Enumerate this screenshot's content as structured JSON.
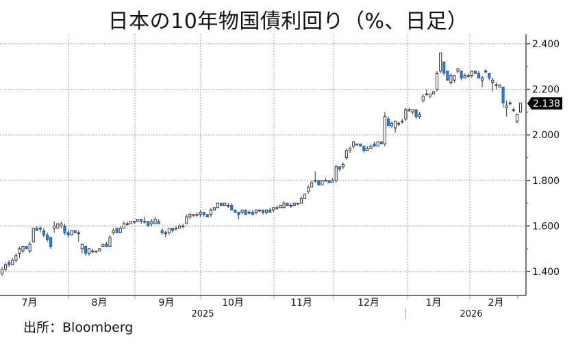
{
  "header": {
    "title": "日本の10年物国債利回り（%、日足）"
  },
  "footer": {
    "source": "出所：Bloomberg"
  },
  "colors": {
    "up_fill": "#ffffff",
    "up_stroke": "#333333",
    "down_fill": "#2e7fe0",
    "down_stroke": "#1d5fb0",
    "grid": "#9a9a9a",
    "axis": "#777777",
    "last_badge_bg": "#000000",
    "last_badge_text": "#ffffff"
  },
  "chart_data": {
    "type": "candlestick",
    "title": "日本の10年物国債利回り（%、日足）",
    "xlabel": "",
    "ylabel": "",
    "ylim": [
      1.3,
      2.42
    ],
    "y_ticks": [
      "1.400",
      "1.600",
      "1.800",
      "2.000",
      "2.200",
      "2.400"
    ],
    "y_tick_values": [
      1.4,
      1.6,
      1.8,
      2.0,
      2.2,
      2.4
    ],
    "last_value": "2.138",
    "x_month_labels": [
      "7月",
      "8月",
      "9月",
      "10月",
      "11月",
      "12月",
      "1月",
      "2月"
    ],
    "x_year_labels": [
      "2025",
      "2026"
    ],
    "grid": true,
    "legend": null,
    "candles_approx": [
      {
        "o": 1.39,
        "h": 1.42,
        "l": 1.38,
        "c": 1.41
      },
      {
        "o": 1.41,
        "h": 1.44,
        "l": 1.4,
        "c": 1.43
      },
      {
        "o": 1.44,
        "h": 1.45,
        "l": 1.42,
        "c": 1.43
      },
      {
        "o": 1.43,
        "h": 1.46,
        "l": 1.43,
        "c": 1.45
      },
      {
        "o": 1.45,
        "h": 1.48,
        "l": 1.44,
        "c": 1.47
      },
      {
        "o": 1.48,
        "h": 1.51,
        "l": 1.46,
        "c": 1.5
      },
      {
        "o": 1.49,
        "h": 1.51,
        "l": 1.48,
        "c": 1.51
      },
      {
        "o": 1.51,
        "h": 1.51,
        "l": 1.5,
        "c": 1.5
      },
      {
        "o": 1.49,
        "h": 1.53,
        "l": 1.48,
        "c": 1.52
      },
      {
        "o": 1.53,
        "h": 1.59,
        "l": 1.53,
        "c": 1.59
      },
      {
        "o": 1.59,
        "h": 1.6,
        "l": 1.58,
        "c": 1.58
      },
      {
        "o": 1.59,
        "h": 1.6,
        "l": 1.57,
        "c": 1.59
      },
      {
        "o": 1.58,
        "h": 1.59,
        "l": 1.55,
        "c": 1.56
      },
      {
        "o": 1.56,
        "h": 1.57,
        "l": 1.53,
        "c": 1.54
      },
      {
        "o": 1.55,
        "h": 1.55,
        "l": 1.5,
        "c": 1.51
      },
      {
        "o": 1.59,
        "h": 1.62,
        "l": 1.57,
        "c": 1.6
      },
      {
        "o": 1.59,
        "h": 1.61,
        "l": 1.59,
        "c": 1.61
      },
      {
        "o": 1.6,
        "h": 1.62,
        "l": 1.59,
        "c": 1.61
      },
      {
        "o": 1.6,
        "h": 1.61,
        "l": 1.56,
        "c": 1.57
      },
      {
        "o": 1.57,
        "h": 1.58,
        "l": 1.55,
        "c": 1.56
      },
      {
        "o": 1.56,
        "h": 1.58,
        "l": 1.56,
        "c": 1.58
      },
      {
        "o": 1.58,
        "h": 1.58,
        "l": 1.57,
        "c": 1.57
      },
      {
        "o": 1.57,
        "h": 1.58,
        "l": 1.53,
        "c": 1.57
      },
      {
        "o": 1.5,
        "h": 1.52,
        "l": 1.48,
        "c": 1.52
      },
      {
        "o": 1.51,
        "h": 1.51,
        "l": 1.47,
        "c": 1.48
      },
      {
        "o": 1.48,
        "h": 1.5,
        "l": 1.47,
        "c": 1.5
      },
      {
        "o": 1.49,
        "h": 1.5,
        "l": 1.48,
        "c": 1.49
      },
      {
        "o": 1.49,
        "h": 1.49,
        "l": 1.48,
        "c": 1.49
      },
      {
        "o": 1.49,
        "h": 1.5,
        "l": 1.49,
        "c": 1.5
      },
      {
        "o": 1.51,
        "h": 1.52,
        "l": 1.51,
        "c": 1.52
      },
      {
        "o": 1.52,
        "h": 1.53,
        "l": 1.51,
        "c": 1.51
      },
      {
        "o": 1.51,
        "h": 1.56,
        "l": 1.51,
        "c": 1.55
      },
      {
        "o": 1.57,
        "h": 1.59,
        "l": 1.56,
        "c": 1.58
      },
      {
        "o": 1.59,
        "h": 1.59,
        "l": 1.57,
        "c": 1.57
      },
      {
        "o": 1.57,
        "h": 1.6,
        "l": 1.57,
        "c": 1.59
      },
      {
        "o": 1.59,
        "h": 1.62,
        "l": 1.59,
        "c": 1.61
      },
      {
        "o": 1.61,
        "h": 1.62,
        "l": 1.6,
        "c": 1.61
      },
      {
        "o": 1.61,
        "h": 1.62,
        "l": 1.61,
        "c": 1.62
      },
      {
        "o": 1.62,
        "h": 1.62,
        "l": 1.61,
        "c": 1.62
      },
      {
        "o": 1.62,
        "h": 1.63,
        "l": 1.62,
        "c": 1.63
      },
      {
        "o": 1.63,
        "h": 1.63,
        "l": 1.61,
        "c": 1.62
      },
      {
        "o": 1.62,
        "h": 1.64,
        "l": 1.61,
        "c": 1.62
      },
      {
        "o": 1.62,
        "h": 1.62,
        "l": 1.6,
        "c": 1.6
      },
      {
        "o": 1.61,
        "h": 1.63,
        "l": 1.6,
        "c": 1.62
      },
      {
        "o": 1.61,
        "h": 1.64,
        "l": 1.61,
        "c": 1.63
      },
      {
        "o": 1.62,
        "h": 1.63,
        "l": 1.61,
        "c": 1.61
      },
      {
        "o": 1.58,
        "h": 1.59,
        "l": 1.56,
        "c": 1.57
      },
      {
        "o": 1.57,
        "h": 1.58,
        "l": 1.55,
        "c": 1.57
      },
      {
        "o": 1.57,
        "h": 1.59,
        "l": 1.56,
        "c": 1.59
      },
      {
        "o": 1.59,
        "h": 1.59,
        "l": 1.57,
        "c": 1.58
      },
      {
        "o": 1.59,
        "h": 1.6,
        "l": 1.58,
        "c": 1.59
      },
      {
        "o": 1.59,
        "h": 1.61,
        "l": 1.59,
        "c": 1.6
      },
      {
        "o": 1.6,
        "h": 1.61,
        "l": 1.59,
        "c": 1.6
      },
      {
        "o": 1.61,
        "h": 1.65,
        "l": 1.61,
        "c": 1.64
      },
      {
        "o": 1.64,
        "h": 1.66,
        "l": 1.63,
        "c": 1.65
      },
      {
        "o": 1.65,
        "h": 1.65,
        "l": 1.64,
        "c": 1.65
      },
      {
        "o": 1.65,
        "h": 1.66,
        "l": 1.64,
        "c": 1.65
      },
      {
        "o": 1.65,
        "h": 1.67,
        "l": 1.64,
        "c": 1.66
      },
      {
        "o": 1.66,
        "h": 1.66,
        "l": 1.64,
        "c": 1.65
      },
      {
        "o": 1.65,
        "h": 1.65,
        "l": 1.64,
        "c": 1.64
      },
      {
        "o": 1.65,
        "h": 1.68,
        "l": 1.64,
        "c": 1.67
      },
      {
        "o": 1.67,
        "h": 1.68,
        "l": 1.67,
        "c": 1.68
      },
      {
        "o": 1.68,
        "h": 1.7,
        "l": 1.68,
        "c": 1.7
      },
      {
        "o": 1.7,
        "h": 1.7,
        "l": 1.69,
        "c": 1.69
      },
      {
        "o": 1.69,
        "h": 1.7,
        "l": 1.69,
        "c": 1.7
      },
      {
        "o": 1.69,
        "h": 1.7,
        "l": 1.68,
        "c": 1.69
      },
      {
        "o": 1.69,
        "h": 1.7,
        "l": 1.67,
        "c": 1.67
      },
      {
        "o": 1.67,
        "h": 1.67,
        "l": 1.66,
        "c": 1.66
      },
      {
        "o": 1.66,
        "h": 1.66,
        "l": 1.63,
        "c": 1.65
      },
      {
        "o": 1.66,
        "h": 1.67,
        "l": 1.65,
        "c": 1.67
      },
      {
        "o": 1.67,
        "h": 1.67,
        "l": 1.65,
        "c": 1.65
      },
      {
        "o": 1.66,
        "h": 1.67,
        "l": 1.65,
        "c": 1.66
      },
      {
        "o": 1.66,
        "h": 1.67,
        "l": 1.65,
        "c": 1.65
      },
      {
        "o": 1.66,
        "h": 1.67,
        "l": 1.65,
        "c": 1.67
      },
      {
        "o": 1.67,
        "h": 1.67,
        "l": 1.66,
        "c": 1.67
      },
      {
        "o": 1.67,
        "h": 1.67,
        "l": 1.65,
        "c": 1.66
      },
      {
        "o": 1.66,
        "h": 1.67,
        "l": 1.65,
        "c": 1.67
      },
      {
        "o": 1.67,
        "h": 1.68,
        "l": 1.66,
        "c": 1.66
      },
      {
        "o": 1.67,
        "h": 1.68,
        "l": 1.66,
        "c": 1.68
      },
      {
        "o": 1.68,
        "h": 1.69,
        "l": 1.67,
        "c": 1.68
      },
      {
        "o": 1.68,
        "h": 1.69,
        "l": 1.68,
        "c": 1.69
      },
      {
        "o": 1.68,
        "h": 1.71,
        "l": 1.68,
        "c": 1.7
      },
      {
        "o": 1.7,
        "h": 1.7,
        "l": 1.69,
        "c": 1.69
      },
      {
        "o": 1.69,
        "h": 1.7,
        "l": 1.68,
        "c": 1.69
      },
      {
        "o": 1.69,
        "h": 1.7,
        "l": 1.69,
        "c": 1.7
      },
      {
        "o": 1.7,
        "h": 1.7,
        "l": 1.69,
        "c": 1.7
      },
      {
        "o": 1.7,
        "h": 1.73,
        "l": 1.7,
        "c": 1.72
      },
      {
        "o": 1.72,
        "h": 1.74,
        "l": 1.72,
        "c": 1.74
      },
      {
        "o": 1.75,
        "h": 1.78,
        "l": 1.74,
        "c": 1.77
      },
      {
        "o": 1.77,
        "h": 1.8,
        "l": 1.77,
        "c": 1.79
      },
      {
        "o": 1.8,
        "h": 1.84,
        "l": 1.79,
        "c": 1.8
      },
      {
        "o": 1.8,
        "h": 1.8,
        "l": 1.78,
        "c": 1.78
      },
      {
        "o": 1.78,
        "h": 1.8,
        "l": 1.78,
        "c": 1.8
      },
      {
        "o": 1.8,
        "h": 1.81,
        "l": 1.8,
        "c": 1.8
      },
      {
        "o": 1.8,
        "h": 1.8,
        "l": 1.79,
        "c": 1.79
      },
      {
        "o": 1.79,
        "h": 1.81,
        "l": 1.79,
        "c": 1.8
      },
      {
        "o": 1.8,
        "h": 1.87,
        "l": 1.79,
        "c": 1.86
      },
      {
        "o": 1.86,
        "h": 1.86,
        "l": 1.84,
        "c": 1.85
      },
      {
        "o": 1.86,
        "h": 1.88,
        "l": 1.85,
        "c": 1.87
      },
      {
        "o": 1.9,
        "h": 1.94,
        "l": 1.89,
        "c": 1.93
      },
      {
        "o": 1.93,
        "h": 1.95,
        "l": 1.92,
        "c": 1.94
      },
      {
        "o": 1.95,
        "h": 1.97,
        "l": 1.94,
        "c": 1.97
      },
      {
        "o": 1.96,
        "h": 1.96,
        "l": 1.95,
        "c": 1.96
      },
      {
        "o": 1.96,
        "h": 1.96,
        "l": 1.95,
        "c": 1.95
      },
      {
        "o": 1.95,
        "h": 1.95,
        "l": 1.92,
        "c": 1.93
      },
      {
        "o": 1.93,
        "h": 1.95,
        "l": 1.93,
        "c": 1.94
      },
      {
        "o": 1.94,
        "h": 1.96,
        "l": 1.94,
        "c": 1.95
      },
      {
        "o": 1.96,
        "h": 1.97,
        "l": 1.95,
        "c": 1.95
      },
      {
        "o": 1.95,
        "h": 1.97,
        "l": 1.95,
        "c": 1.97
      },
      {
        "o": 1.97,
        "h": 1.97,
        "l": 1.96,
        "c": 1.96
      },
      {
        "o": 1.96,
        "h": 2.1,
        "l": 1.95,
        "c": 2.08
      },
      {
        "o": 2.07,
        "h": 2.08,
        "l": 2.04,
        "c": 2.04
      },
      {
        "o": 2.04,
        "h": 2.06,
        "l": 2.03,
        "c": 2.05
      },
      {
        "o": 2.03,
        "h": 2.06,
        "l": 2.01,
        "c": 2.06
      },
      {
        "o": 2.05,
        "h": 2.06,
        "l": 2.04,
        "c": 2.05
      },
      {
        "o": 2.06,
        "h": 2.07,
        "l": 2.05,
        "c": 2.06
      },
      {
        "o": 2.07,
        "h": 2.12,
        "l": 2.06,
        "c": 2.11
      },
      {
        "o": 2.11,
        "h": 2.12,
        "l": 2.1,
        "c": 2.11
      },
      {
        "o": 2.1,
        "h": 2.11,
        "l": 2.09,
        "c": 2.11
      },
      {
        "o": 2.11,
        "h": 2.11,
        "l": 2.07,
        "c": 2.08
      },
      {
        "o": 2.08,
        "h": 2.1,
        "l": 2.07,
        "c": 2.09
      },
      {
        "o": 2.15,
        "h": 2.18,
        "l": 2.14,
        "c": 2.17
      },
      {
        "o": 2.18,
        "h": 2.2,
        "l": 2.17,
        "c": 2.18
      },
      {
        "o": 2.17,
        "h": 2.18,
        "l": 2.16,
        "c": 2.18
      },
      {
        "o": 2.18,
        "h": 2.19,
        "l": 2.18,
        "c": 2.19
      },
      {
        "o": 2.2,
        "h": 2.28,
        "l": 2.19,
        "c": 2.27
      },
      {
        "o": 2.28,
        "h": 2.36,
        "l": 2.27,
        "c": 2.36
      },
      {
        "o": 2.32,
        "h": 2.32,
        "l": 2.26,
        "c": 2.27
      },
      {
        "o": 2.28,
        "h": 2.28,
        "l": 2.24,
        "c": 2.24
      },
      {
        "o": 2.23,
        "h": 2.27,
        "l": 2.22,
        "c": 2.26
      },
      {
        "o": 2.24,
        "h": 2.26,
        "l": 2.23,
        "c": 2.26
      },
      {
        "o": 2.28,
        "h": 2.29,
        "l": 2.27,
        "c": 2.29
      },
      {
        "o": 2.28,
        "h": 2.28,
        "l": 2.24,
        "c": 2.25
      },
      {
        "o": 2.25,
        "h": 2.27,
        "l": 2.25,
        "c": 2.26
      },
      {
        "o": 2.26,
        "h": 2.27,
        "l": 2.25,
        "c": 2.26
      },
      {
        "o": 2.26,
        "h": 2.28,
        "l": 2.25,
        "c": 2.28
      },
      {
        "o": 2.28,
        "h": 2.28,
        "l": 2.27,
        "c": 2.27
      },
      {
        "o": 2.27,
        "h": 2.28,
        "l": 2.25,
        "c": 2.25
      },
      {
        "o": 2.24,
        "h": 2.26,
        "l": 2.21,
        "c": 2.25
      },
      {
        "o": 2.28,
        "h": 2.29,
        "l": 2.27,
        "c": 2.28
      },
      {
        "o": 2.27,
        "h": 2.27,
        "l": 2.24,
        "c": 2.25
      },
      {
        "o": 2.23,
        "h": 2.25,
        "l": 2.19,
        "c": 2.24
      },
      {
        "o": 2.22,
        "h": 2.23,
        "l": 2.2,
        "c": 2.22
      },
      {
        "o": 2.21,
        "h": 2.22,
        "l": 2.21,
        "c": 2.22
      },
      {
        "o": 2.21,
        "h": 2.21,
        "l": 2.12,
        "c": 2.14
      },
      {
        "o": 2.12,
        "h": 2.15,
        "l": 2.08,
        "c": 2.13
      },
      {
        "o": 2.14,
        "h": 2.15,
        "l": 2.13,
        "c": 2.14
      },
      {
        "o": 2.11,
        "h": 2.12,
        "l": 2.1,
        "c": 2.11
      },
      {
        "o": 2.06,
        "h": 2.09,
        "l": 2.05,
        "c": 2.09
      },
      {
        "o": 2.1,
        "h": 2.14,
        "l": 2.1,
        "c": 2.14
      }
    ]
  }
}
